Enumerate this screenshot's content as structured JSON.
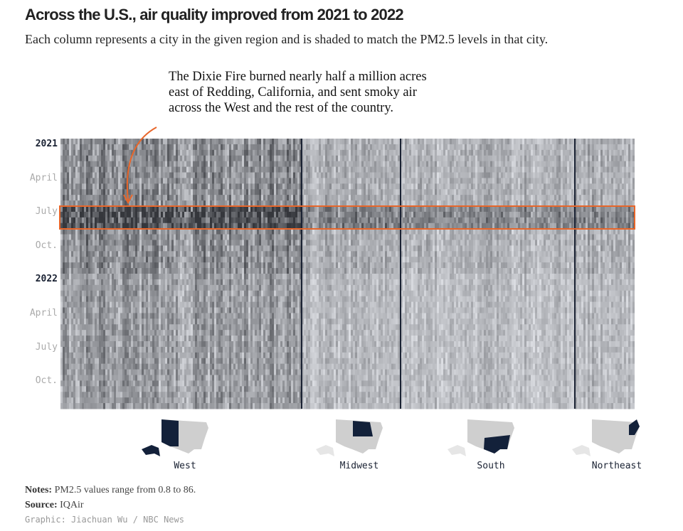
{
  "title": "Across the U.S., air quality improved from 2021 to 2022",
  "subtitle": "Each column represents a city in the given region and is shaded to match the PM2.5 levels in that city.",
  "annotation": "The Dixie Fire burned nearly half a million acres east of Redding, California, and sent smoky air across the West and the rest of the country.",
  "chart_data": {
    "type": "heatmap",
    "title": "Across the U.S., air quality improved from 2021 to 2022",
    "x_categories": [
      "West",
      "Midwest",
      "South",
      "Northeast"
    ],
    "y_ticks": [
      "2021",
      "April",
      "July",
      "Oct.",
      "2022",
      "April",
      "July",
      "Oct."
    ],
    "value_range": [
      0.8,
      86
    ],
    "value_label": "PM2.5",
    "color_scale": [
      "#f2f3f5",
      "#1a2233"
    ],
    "highlight": {
      "period": "July–Aug. 2021",
      "color": "#e8662a"
    },
    "divider_color": "#1a2233"
  },
  "notes": {
    "label": "Notes:",
    "text": " PM2.5 values range from 0.8 to 86."
  },
  "source": {
    "label": "Source:",
    "text": " IQAir"
  },
  "credit": "Graphic: Jiachuan Wu / NBC News"
}
